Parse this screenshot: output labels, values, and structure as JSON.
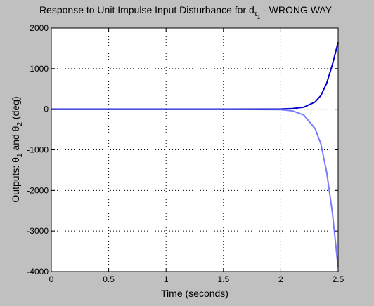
{
  "chart_data": {
    "type": "line",
    "title": {
      "main": "Response to Unit Impulse Input Disturbance for d",
      "sub1": "τ",
      "sub2": "1",
      "suffix": " - WRONG WAY"
    },
    "xlabel": "Time (seconds)",
    "ylabel": {
      "prefix": "Outputs: θ",
      "sub1": "1",
      "middle": " and θ",
      "sub2": "2",
      "suffix": " (deg)"
    },
    "xlim": [
      0,
      2.5
    ],
    "ylim": [
      -4000,
      2000
    ],
    "xticks": [
      0,
      0.5,
      1,
      1.5,
      2,
      2.5
    ],
    "xtick_labels": [
      "0",
      "0.5",
      "1",
      "1.5",
      "2",
      "2.5"
    ],
    "yticks": [
      -4000,
      -3000,
      -2000,
      -1000,
      0,
      1000,
      2000
    ],
    "ytick_labels": [
      "-4000",
      "-3000",
      "-2000",
      "-1000",
      "0",
      "1000",
      "2000"
    ],
    "grid": true,
    "series": [
      {
        "color": "#0000c8",
        "x": [
          0,
          1.0,
          1.5,
          2.0,
          2.1,
          2.2,
          2.3,
          2.35,
          2.4,
          2.45,
          2.5
        ],
        "y": [
          0,
          0,
          0,
          5,
          15,
          50,
          180,
          340,
          640,
          1100,
          1650
        ]
      },
      {
        "color": "#7a7aff",
        "x": [
          0,
          1.0,
          1.5,
          2.0,
          2.1,
          2.2,
          2.3,
          2.35,
          2.4,
          2.45,
          2.5
        ],
        "y": [
          0,
          0,
          0,
          -10,
          -40,
          -140,
          -480,
          -860,
          -1550,
          -2550,
          -3900
        ]
      }
    ]
  }
}
